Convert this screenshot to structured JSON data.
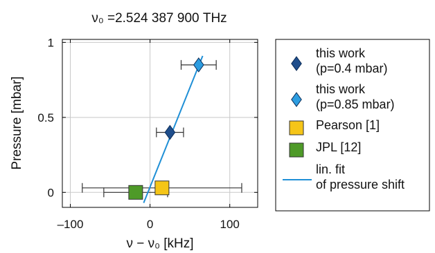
{
  "chart_data": {
    "type": "scatter",
    "title": "ν₀ =2.524 387 900 THz",
    "xlabel": "ν − ν₀ [kHz]",
    "ylabel": "Pressure [mbar]",
    "xlim": [
      -110,
      135
    ],
    "ylim": [
      -0.1,
      1.02
    ],
    "xticks": [
      -100,
      0,
      100
    ],
    "xtick_labels": [
      "–100",
      "0",
      "100"
    ],
    "yticks": [
      0,
      0.5,
      1
    ],
    "ytick_labels": [
      "0",
      "0.5",
      "1"
    ],
    "grid": true,
    "legend_position": "right",
    "series": [
      {
        "name": "this work (p=0.4 mbar)",
        "legend_lines": [
          "this work",
          "(p=0.4 mbar)"
        ],
        "marker": "diamond",
        "color": "#1f4e8c",
        "points": [
          {
            "x": 25,
            "y": 0.4,
            "xerr": 17
          }
        ]
      },
      {
        "name": "this work (p=0.85 mbar)",
        "legend_lines": [
          "this work",
          "(p=0.85 mbar)"
        ],
        "marker": "diamond",
        "color": "#2d9de0",
        "points": [
          {
            "x": 61,
            "y": 0.85,
            "xerr": 22
          }
        ]
      },
      {
        "name": "Pearson [1]",
        "legend_lines": [
          "Pearson [1]"
        ],
        "marker": "square",
        "color": "#f5c518",
        "points": [
          {
            "x": 15,
            "y": 0.03,
            "xerr": 100
          }
        ]
      },
      {
        "name": "JPL [12]",
        "legend_lines": [
          "JPL [12]"
        ],
        "marker": "square",
        "color": "#4e9a28",
        "points": [
          {
            "x": -18,
            "y": 0.0,
            "xerr": 40
          }
        ]
      },
      {
        "name": "lin. fit of pressure shift",
        "legend_lines": [
          "lin. fit",
          "of pressure shift"
        ],
        "marker": "line",
        "color": "#1f8fd6",
        "line": [
          {
            "x": -8,
            "y": -0.07
          },
          {
            "x": 66,
            "y": 0.91
          }
        ]
      }
    ]
  }
}
